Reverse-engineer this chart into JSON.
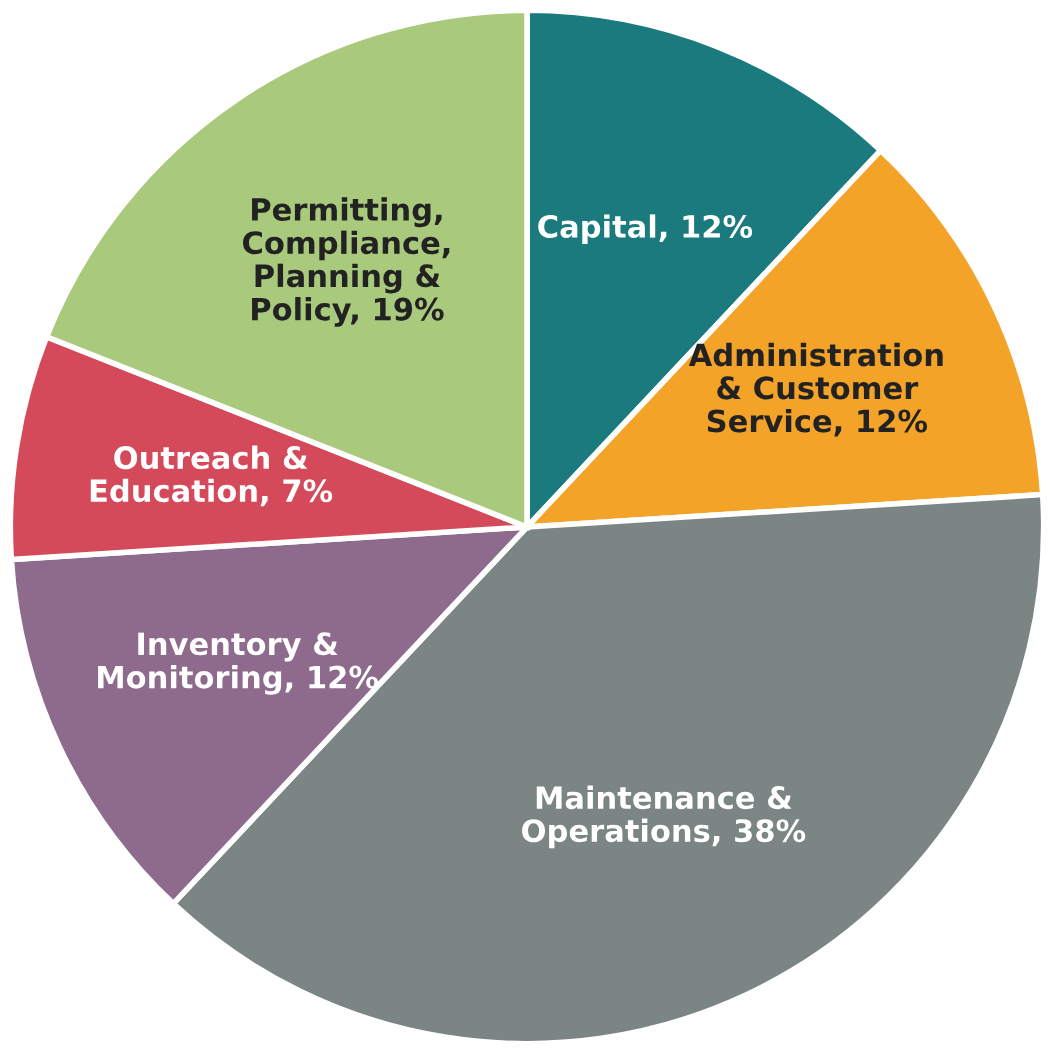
{
  "chart_data": {
    "type": "pie",
    "categories": [
      "Capital",
      "Administration\n& Customer\nService",
      "Maintenance &\nOperations",
      "Inventory &\nMonitoring",
      "Outreach &\nEducation",
      "Permitting,\nCompliance,\nPlanning &\nPolicy"
    ],
    "values": [
      12,
      12,
      38,
      12,
      7,
      19
    ],
    "value_labels": [
      "12%",
      "12%",
      "38%",
      "12%",
      "7%",
      "19%"
    ],
    "colors": [
      "#1b7a7e",
      "#f4a329",
      "#7b8584",
      "#8e6a8d",
      "#d44a5a",
      "#a9c97c"
    ]
  }
}
